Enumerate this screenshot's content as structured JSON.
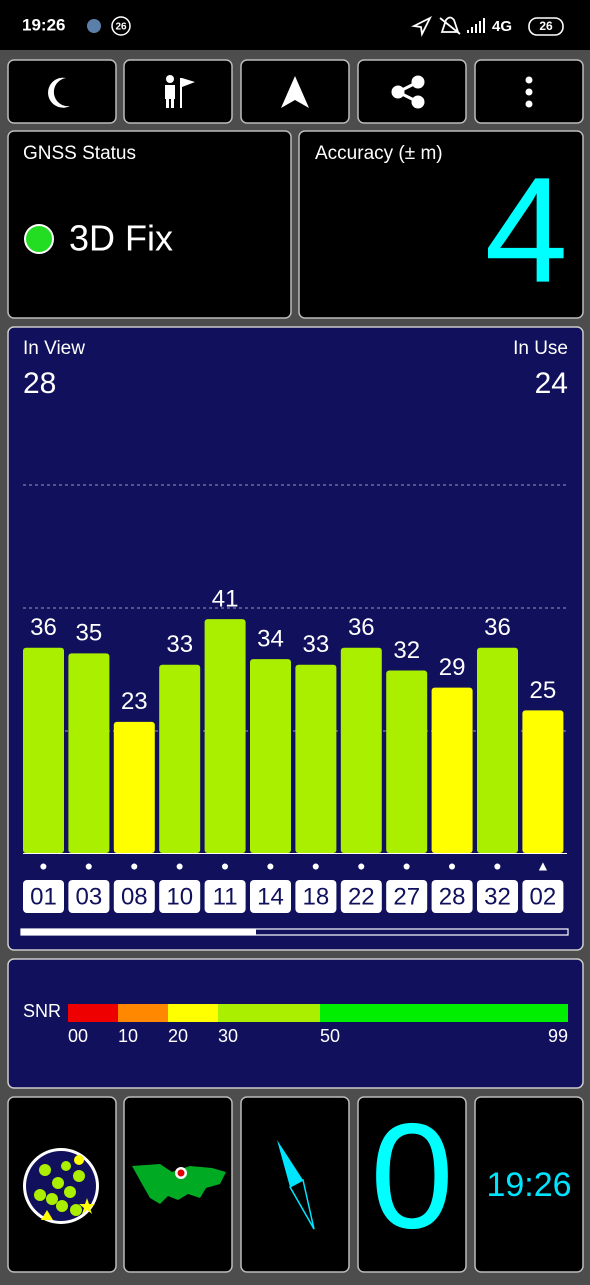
{
  "status_bar": {
    "time": "19:26",
    "badge": "26",
    "network": "4G",
    "battery": "26"
  },
  "gnss_status": {
    "title": "GNSS Status",
    "fix": "3D Fix"
  },
  "accuracy": {
    "title": "Accuracy (± m)",
    "value": "4"
  },
  "in_view": {
    "label": "In View",
    "value": "28"
  },
  "in_use": {
    "label": "In Use",
    "value": "24"
  },
  "chart_data": {
    "type": "bar",
    "categories": [
      "01",
      "03",
      "08",
      "10",
      "11",
      "14",
      "18",
      "22",
      "27",
      "28",
      "32",
      "02"
    ],
    "values": [
      36,
      35,
      23,
      33,
      41,
      34,
      33,
      36,
      32,
      29,
      36,
      25
    ],
    "colors": [
      "#aaee00",
      "#aaee00",
      "#ffff00",
      "#aaee00",
      "#aaee00",
      "#aaee00",
      "#aaee00",
      "#aaee00",
      "#aaee00",
      "#ffff00",
      "#aaee00",
      "#ffff00"
    ],
    "markers": [
      "●",
      "●",
      "●",
      "●",
      "●",
      "●",
      "●",
      "●",
      "●",
      "●",
      "●",
      "▲"
    ],
    "ylim": [
      0,
      64
    ]
  },
  "snr": {
    "label": "SNR",
    "ticks": [
      "00",
      "10",
      "20",
      "30",
      "50",
      "99"
    ],
    "colors": [
      "#ee0000",
      "#ff8800",
      "#ffff00",
      "#aaee00",
      "#00ee00"
    ]
  },
  "footer": {
    "speed": "0",
    "clock": "19:26"
  }
}
